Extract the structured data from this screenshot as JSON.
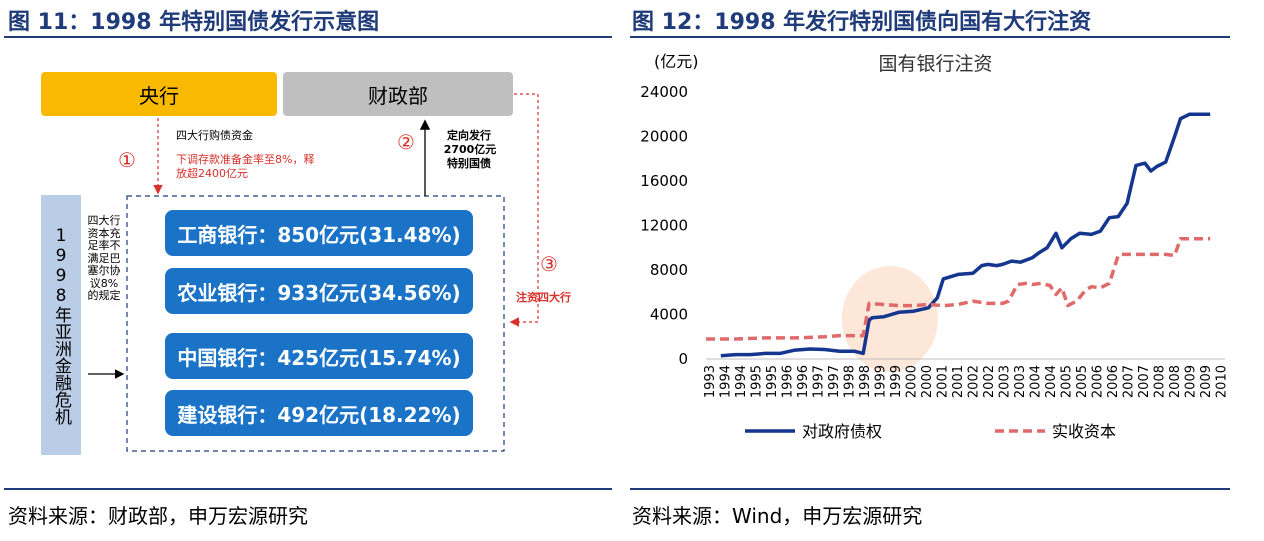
{
  "left": {
    "title": "图 11：1998 年特别国债发行示意图",
    "central_bank": "央行",
    "ministry": "财政部",
    "step1_num": "①",
    "step2_num": "②",
    "step3_num": "③",
    "note1_line1": "四大行购债资金",
    "note1_line2": "下调存款准备金率至8%，释",
    "note1_line3": "放超2400亿元",
    "note2_line1": "定向发行",
    "note2_line2": "2700亿元",
    "note2_line3": "特别国债",
    "note3": "注资四大行",
    "crisis": "1998年亚洲金融危机",
    "reason": "四大行资本充足率不满足巴塞尔协议8%的规定",
    "banks": [
      "工商银行：850亿元(31.48%)",
      "农业银行：933亿元(34.56%)",
      "中国银行：425亿元(15.74%)",
      "建设银行：492亿元(18.22%)"
    ],
    "source": "资料来源：财政部，申万宏源研究"
  },
  "right": {
    "title": "图 12：1998 年发行特别国债向国有大行注资",
    "source": "资料来源：Wind，申万宏源研究"
  },
  "chart_data": {
    "type": "line",
    "title": "国有银行注资",
    "unit_label": "(亿元)",
    "ylim": [
      0,
      24000
    ],
    "yticks": [
      0,
      4000,
      8000,
      12000,
      16000,
      20000,
      24000
    ],
    "xlim": [
      1993.0,
      2010.5
    ],
    "xtick_labels": [
      "1993",
      "1994",
      "1994",
      "1995",
      "1995",
      "1996",
      "1996",
      "1997",
      "1997",
      "1998",
      "1998",
      "1999",
      "1999",
      "2000",
      "2000",
      "2001",
      "2001",
      "2002",
      "2002",
      "2003",
      "2003",
      "2004",
      "2004",
      "2005",
      "2005",
      "2006",
      "2006",
      "2007",
      "2007",
      "2008",
      "2008",
      "2009",
      "2009",
      "2010"
    ],
    "legend": [
      "对政府债权",
      "实收资本"
    ],
    "colors": {
      "claims": "#15368f",
      "capital": "#e06a6a",
      "highlight": "#fbe3d2"
    },
    "series": [
      {
        "name": "对政府债权",
        "x": [
          1993.5,
          1994.0,
          1994.5,
          1995.0,
          1995.5,
          1996.0,
          1996.5,
          1997.0,
          1997.5,
          1998.0,
          1998.3,
          1998.5,
          1998.6,
          1999.0,
          1999.5,
          2000.0,
          2000.5,
          2000.8,
          2001.0,
          2001.5,
          2002.0,
          2002.3,
          2002.5,
          2002.8,
          2003.0,
          2003.3,
          2003.6,
          2003.9,
          2004.0,
          2004.2,
          2004.5,
          2004.8,
          2005.0,
          2005.3,
          2005.6,
          2006.0,
          2006.3,
          2006.6,
          2006.9,
          2007.2,
          2007.5,
          2007.8,
          2008.0,
          2008.2,
          2008.5,
          2008.8,
          2009.0,
          2009.3,
          2009.6,
          2009.9,
          2010.0
        ],
        "values": [
          300,
          400,
          400,
          500,
          500,
          800,
          900,
          850,
          700,
          700,
          500,
          3500,
          3700,
          3800,
          4200,
          4300,
          4600,
          5500,
          7200,
          7600,
          7700,
          8400,
          8500,
          8400,
          8500,
          8800,
          8700,
          9000,
          9100,
          9500,
          10000,
          11300,
          10000,
          10800,
          11300,
          11200,
          11500,
          12700,
          12800,
          14000,
          17400,
          17600,
          16900,
          17300,
          17700,
          20000,
          21600,
          22000,
          22000,
          22000,
          22000
        ],
        "style": "solid"
      },
      {
        "name": "实收资本",
        "x": [
          1993.0,
          1994.0,
          1995.0,
          1996.0,
          1997.0,
          1997.5,
          1998.0,
          1998.3,
          1998.5,
          1999.0,
          1999.5,
          2000.0,
          2000.5,
          2001.0,
          2001.5,
          2002.0,
          2002.5,
          2003.0,
          2003.2,
          2003.5,
          2003.8,
          2004.0,
          2004.3,
          2004.6,
          2004.8,
          2005.0,
          2005.2,
          2005.5,
          2005.8,
          2006.0,
          2006.3,
          2006.6,
          2006.9,
          2007.0,
          2007.5,
          2008.0,
          2008.3,
          2008.5,
          2008.8,
          2009.0,
          2009.5,
          2010.0
        ],
        "values": [
          1800,
          1800,
          1900,
          1900,
          2000,
          2100,
          2100,
          2100,
          5000,
          4900,
          4800,
          4800,
          4900,
          4800,
          4900,
          5200,
          5000,
          5000,
          5200,
          6700,
          6800,
          6700,
          6800,
          6600,
          5800,
          6400,
          4800,
          5200,
          6200,
          6500,
          6400,
          6800,
          9300,
          9400,
          9400,
          9400,
          9400,
          9400,
          9300,
          10800,
          10800,
          10800
        ],
        "style": "dashed"
      }
    ]
  }
}
